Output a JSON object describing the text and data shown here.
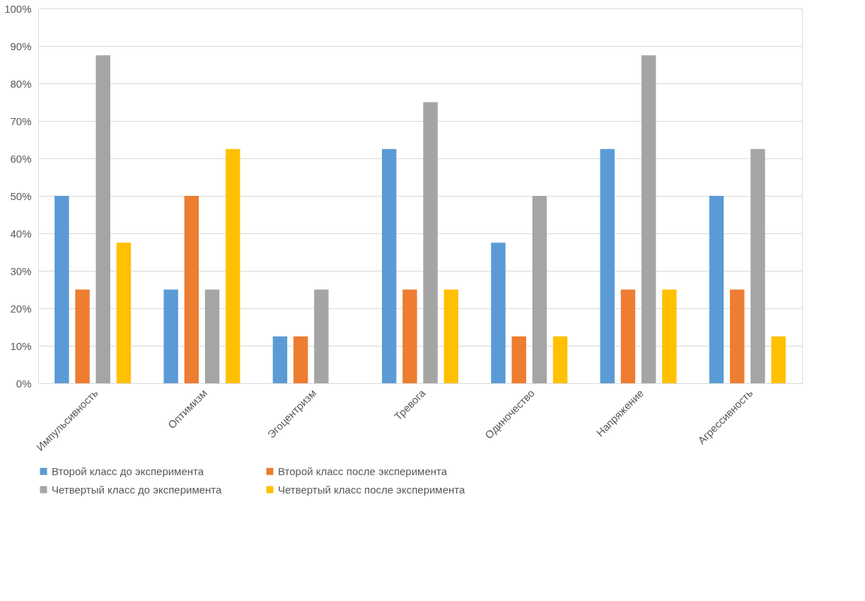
{
  "chart_data": {
    "type": "bar",
    "categories": [
      "Импульсивность",
      "Оптимизм",
      "Эгоцентризм",
      "Тревога",
      "Одиночество",
      "Напряжение",
      "Агрессивность"
    ],
    "series": [
      {
        "name": "Второй класс до эксперимента",
        "color": "#5b9bd5",
        "values": [
          50,
          25,
          12.5,
          62.5,
          37.5,
          62.5,
          50
        ]
      },
      {
        "name": "Второй класс после эксперимента",
        "color": "#ed7d31",
        "values": [
          25,
          50,
          12.5,
          25,
          12.5,
          25,
          25
        ]
      },
      {
        "name": "Четвертый класс до эксперимента",
        "color": "#a5a5a5",
        "values": [
          87.5,
          25,
          25,
          75,
          50,
          87.5,
          62.5
        ]
      },
      {
        "name": "Четвертый класс после эксперимента",
        "color": "#ffc000",
        "values": [
          37.5,
          62.5,
          0,
          25,
          12.5,
          25,
          12.5
        ]
      }
    ],
    "ylim": [
      0,
      100
    ],
    "yticks": [
      {
        "value": 0,
        "label": "0%"
      },
      {
        "value": 10,
        "label": "10%"
      },
      {
        "value": 20,
        "label": "20%"
      },
      {
        "value": 30,
        "label": "30%"
      },
      {
        "value": 40,
        "label": "40%"
      },
      {
        "value": 50,
        "label": "50%"
      },
      {
        "value": 60,
        "label": "60%"
      },
      {
        "value": 70,
        "label": "70%"
      },
      {
        "value": 80,
        "label": "80%"
      },
      {
        "value": 90,
        "label": "90%"
      },
      {
        "value": 100,
        "label": "100%"
      }
    ],
    "grid": "y",
    "legend": "bottom"
  }
}
